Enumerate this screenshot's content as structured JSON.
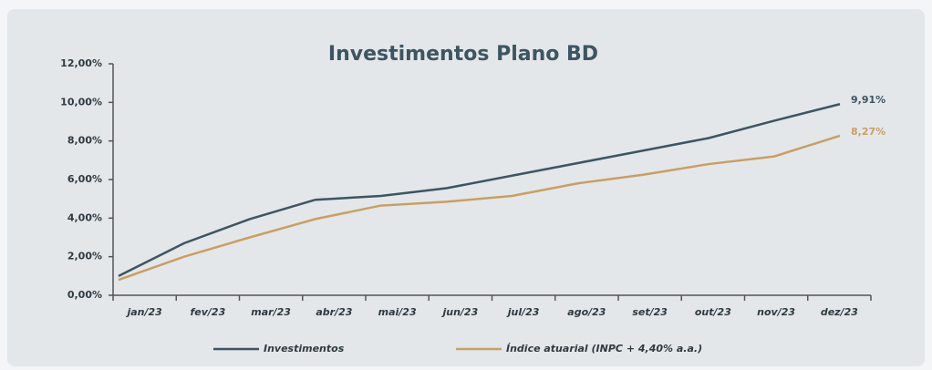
{
  "chart_data": {
    "type": "line",
    "title": "Investimentos Plano BD",
    "categories": [
      "jan/23",
      "fev/23",
      "mar/23",
      "abr/23",
      "mai/23",
      "jun/23",
      "jul/23",
      "ago/23",
      "set/23",
      "out/23",
      "nov/23",
      "dez/23"
    ],
    "series": [
      {
        "name": "Investimentos",
        "color": "#3d5561",
        "values": [
          1.0,
          2.7,
          3.95,
          4.95,
          5.15,
          5.55,
          6.2,
          6.85,
          7.5,
          8.15,
          9.05,
          9.91
        ],
        "value_labels": [
          null,
          null,
          null,
          null,
          null,
          null,
          null,
          null,
          null,
          null,
          null,
          "9,91%"
        ]
      },
      {
        "name": "Índice atuarial (INPC + 4,40% a.a.)",
        "color": "#c9a060",
        "values": [
          0.8,
          2.0,
          3.0,
          3.95,
          4.65,
          4.85,
          5.15,
          5.8,
          6.25,
          6.8,
          7.2,
          8.27
        ],
        "value_labels": [
          null,
          null,
          null,
          null,
          null,
          null,
          null,
          null,
          null,
          null,
          null,
          "8,27%"
        ]
      }
    ],
    "ylim": [
      0,
      12
    ],
    "yticks": [
      {
        "value": 0,
        "label": "0,00%"
      },
      {
        "value": 2,
        "label": "2,00%"
      },
      {
        "value": 4,
        "label": "4,00%"
      },
      {
        "value": 6,
        "label": "6,00%"
      },
      {
        "value": 8,
        "label": "8,00%"
      },
      {
        "value": 10,
        "label": "10,00%"
      },
      {
        "value": 12,
        "label": "12,00%"
      }
    ],
    "legend": "bottom"
  }
}
